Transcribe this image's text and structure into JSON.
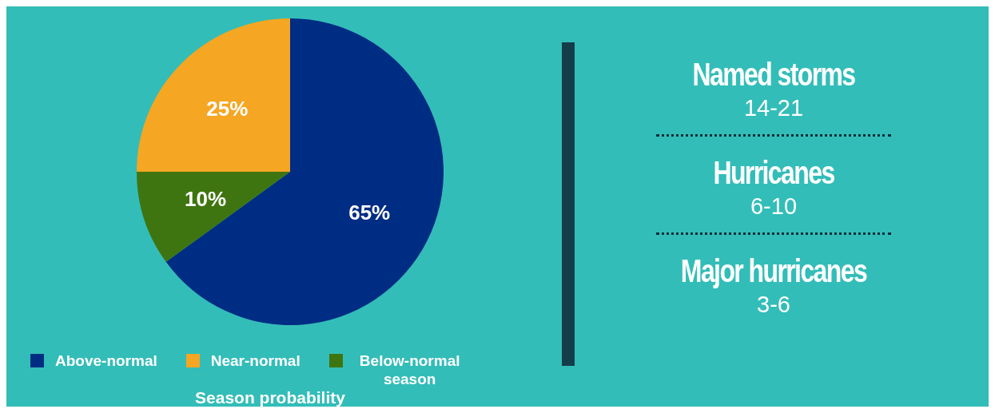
{
  "chart_data": [
    {
      "type": "pie",
      "categories": [
        "Above-normal",
        "Near-normal",
        "Below-normal season"
      ],
      "values": [
        65,
        25,
        10
      ],
      "colors": [
        "#002d84",
        "#f5a623",
        "#3f7510"
      ],
      "value_labels": [
        "65%",
        "25%",
        "10%"
      ],
      "legend": "bottom",
      "legend_title": "Season probability"
    },
    {
      "type": "other",
      "annotations": [
        "Named storms",
        "14-21",
        "Hurricanes",
        "6-10",
        "Major hurricanes",
        "3-6"
      ]
    }
  ]
}
